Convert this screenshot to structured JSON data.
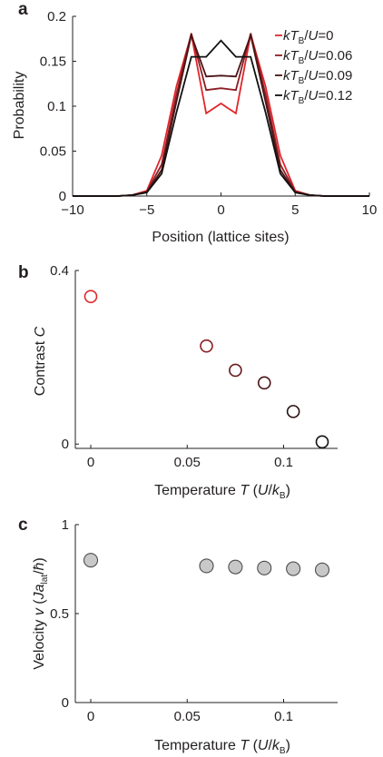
{
  "panel_letters": [
    "a",
    "b",
    "c"
  ],
  "chart_data": [
    {
      "type": "line",
      "panel": "a",
      "xlabel": "Position (lattice sites)",
      "ylabel": "Probability",
      "xlim": [
        -10,
        10
      ],
      "ylim": [
        0,
        0.2
      ],
      "xticks": [
        -10,
        -5,
        0,
        5,
        10
      ],
      "xtick_labels": [
        "−10",
        "−5",
        "0",
        "5",
        "10"
      ],
      "yticks": [
        0,
        0.05,
        0.1,
        0.15,
        0.2
      ],
      "ytick_labels": [
        "0",
        "0.05",
        "0.1",
        "0.15",
        "0.2"
      ],
      "legend_position": "top-right",
      "x": [
        -10,
        -9,
        -8,
        -7,
        -6,
        -5,
        -4,
        -3,
        -2,
        -1,
        0,
        1,
        2,
        3,
        4,
        5,
        6,
        7,
        8,
        9,
        10
      ],
      "series": [
        {
          "name": "−kT_B/U=0",
          "color": "#e0262b",
          "values": [
            0,
            0,
            0,
            0,
            0.001,
            0.006,
            0.045,
            0.122,
            0.18,
            0.092,
            0.103,
            0.092,
            0.18,
            0.122,
            0.045,
            0.006,
            0.001,
            0,
            0,
            0,
            0
          ]
        },
        {
          "name": "−kT_B/U=0.06",
          "color": "#8c1d22",
          "values": [
            0,
            0,
            0,
            0,
            0.001,
            0.005,
            0.035,
            0.113,
            0.181,
            0.118,
            0.12,
            0.118,
            0.181,
            0.113,
            0.035,
            0.005,
            0.001,
            0,
            0,
            0,
            0
          ]
        },
        {
          "name": "−kT_B/U=0.09",
          "color": "#4a1416",
          "values": [
            0,
            0,
            0,
            0,
            0.001,
            0.004,
            0.029,
            0.105,
            0.179,
            0.133,
            0.134,
            0.133,
            0.179,
            0.105,
            0.029,
            0.004,
            0.001,
            0,
            0,
            0,
            0
          ]
        },
        {
          "name": "−kT_B/U=0.12",
          "color": "#111111",
          "values": [
            0,
            0,
            0,
            0,
            0.001,
            0.004,
            0.025,
            0.093,
            0.155,
            0.155,
            0.173,
            0.155,
            0.155,
            0.093,
            0.025,
            0.004,
            0.001,
            0,
            0,
            0,
            0
          ]
        }
      ]
    },
    {
      "type": "scatter",
      "panel": "b",
      "xlabel": "Temperature T (U/k_B)",
      "ylabel": "Contrast C",
      "xlim": [
        -0.008,
        0.128
      ],
      "ylim": [
        -0.01,
        0.4
      ],
      "xticks": [
        0,
        0.05,
        0.1
      ],
      "xtick_labels": [
        "0",
        "0.05",
        "0.1"
      ],
      "yticks": [
        0,
        0.4
      ],
      "ytick_labels": [
        "0",
        "0.4"
      ],
      "points": [
        {
          "x": 0,
          "y": 0.34,
          "color": "#e0262b"
        },
        {
          "x": 0.06,
          "y": 0.226,
          "color": "#8c1d22"
        },
        {
          "x": 0.075,
          "y": 0.17,
          "color": "#6a1a1c"
        },
        {
          "x": 0.09,
          "y": 0.141,
          "color": "#4a1416"
        },
        {
          "x": 0.105,
          "y": 0.075,
          "color": "#2a0f10"
        },
        {
          "x": 0.12,
          "y": 0.005,
          "color": "#111111"
        }
      ]
    },
    {
      "type": "scatter",
      "panel": "c",
      "xlabel": "Temperature T (U/k_B)",
      "ylabel": "Velocity v (Ja_lat/ħ)",
      "xlim": [
        -0.008,
        0.128
      ],
      "ylim": [
        0,
        1
      ],
      "xticks": [
        0,
        0.05,
        0.1
      ],
      "xtick_labels": [
        "0",
        "0.05",
        "0.1"
      ],
      "yticks": [
        0,
        0.5,
        1
      ],
      "ytick_labels": [
        "0",
        "0.5",
        "1"
      ],
      "marker_fill": "#c8c8c8",
      "points": [
        {
          "x": 0,
          "y": 0.8
        },
        {
          "x": 0.06,
          "y": 0.768
        },
        {
          "x": 0.075,
          "y": 0.762
        },
        {
          "x": 0.09,
          "y": 0.756
        },
        {
          "x": 0.105,
          "y": 0.752
        },
        {
          "x": 0.12,
          "y": 0.746
        }
      ]
    }
  ]
}
